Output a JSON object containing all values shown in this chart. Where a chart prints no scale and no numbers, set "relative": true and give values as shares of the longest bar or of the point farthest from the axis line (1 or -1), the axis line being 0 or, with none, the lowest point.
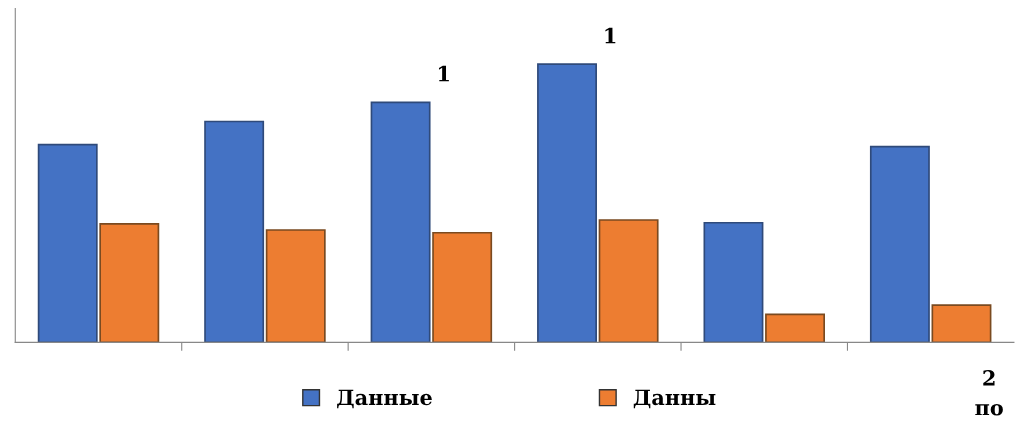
{
  "chart_data": {
    "type": "bar",
    "relative": true,
    "categories": [
      null,
      null,
      null,
      null,
      null,
      null
    ],
    "series": [
      {
        "name": "Данные",
        "color": "#4472c4",
        "values": [
          0.711,
          0.794,
          0.863,
          1,
          0.43,
          0.704
        ]
      },
      {
        "name": "Данны",
        "color": "#ed7d31",
        "values": [
          0.426,
          0.404,
          0.394,
          0.44,
          0.101,
          0.134
        ]
      }
    ],
    "annotations": [
      "1",
      "1",
      "2\nпо"
    ],
    "legend": "bottom"
  }
}
